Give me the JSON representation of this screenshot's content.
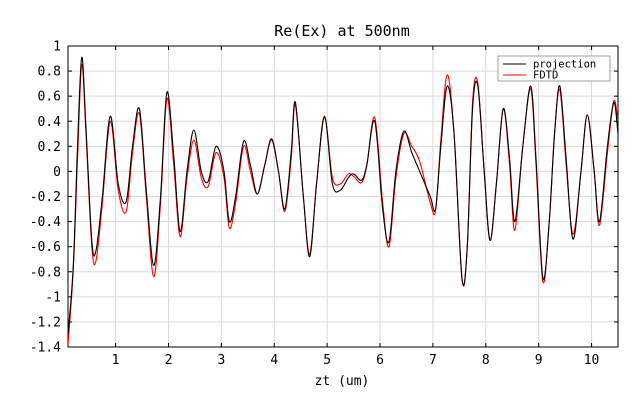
{
  "chart_data": {
    "type": "line",
    "title": "Re(Ex) at 500nm",
    "xlabel": "zt (um)",
    "ylabel": "",
    "xlim": [
      0.1,
      10.5
    ],
    "ylim": [
      -1.4,
      1.0
    ],
    "xticks": [
      1,
      2,
      3,
      4,
      5,
      6,
      7,
      8,
      9,
      10
    ],
    "xtick_labels": [
      "1",
      "2",
      "3",
      "4",
      "5",
      "6",
      "7",
      "8",
      "9",
      "10"
    ],
    "yticks": [
      -1.4,
      -1.2,
      -1,
      -0.8,
      -0.6,
      -0.4,
      -0.2,
      0,
      0.2,
      0.4,
      0.6,
      0.8,
      1
    ],
    "ytick_labels": [
      "-1.4",
      "-1.2",
      "-1",
      "-0.8",
      "-0.6",
      "-0.4",
      "-0.2",
      "0",
      "0.2",
      "0.4",
      "0.6",
      "0.8",
      "1"
    ],
    "grid": true,
    "legend_position": "top-right",
    "colors": {
      "projection": "#000000",
      "FDTD": "#ff0000"
    },
    "series": [
      {
        "name": "projection",
        "color": "#000000",
        "points": [
          [
            0.1,
            -1.3
          ],
          [
            0.2,
            -0.75
          ],
          [
            0.28,
            0.2
          ],
          [
            0.36,
            0.91
          ],
          [
            0.44,
            0.35
          ],
          [
            0.55,
            -0.55
          ],
          [
            0.63,
            -0.63
          ],
          [
            0.75,
            -0.2
          ],
          [
            0.9,
            0.44
          ],
          [
            1.05,
            -0.1
          ],
          [
            1.2,
            -0.24
          ],
          [
            1.32,
            0.2
          ],
          [
            1.45,
            0.5
          ],
          [
            1.58,
            -0.15
          ],
          [
            1.72,
            -0.75
          ],
          [
            1.85,
            -0.2
          ],
          [
            1.97,
            0.63
          ],
          [
            2.1,
            0.12
          ],
          [
            2.22,
            -0.48
          ],
          [
            2.35,
            0.0
          ],
          [
            2.48,
            0.33
          ],
          [
            2.62,
            0.0
          ],
          [
            2.75,
            -0.08
          ],
          [
            2.9,
            0.2
          ],
          [
            3.05,
            0.0
          ],
          [
            3.15,
            -0.4
          ],
          [
            3.27,
            -0.2
          ],
          [
            3.42,
            0.24
          ],
          [
            3.55,
            0.05
          ],
          [
            3.68,
            -0.18
          ],
          [
            3.82,
            0.05
          ],
          [
            3.95,
            0.26
          ],
          [
            4.08,
            0.0
          ],
          [
            4.2,
            -0.3
          ],
          [
            4.32,
            0.15
          ],
          [
            4.4,
            0.55
          ],
          [
            4.55,
            -0.2
          ],
          [
            4.67,
            -0.68
          ],
          [
            4.8,
            -0.1
          ],
          [
            4.95,
            0.44
          ],
          [
            5.1,
            -0.1
          ],
          [
            5.25,
            -0.15
          ],
          [
            5.4,
            -0.05
          ],
          [
            5.5,
            -0.02
          ],
          [
            5.65,
            -0.07
          ],
          [
            5.75,
            0.05
          ],
          [
            5.9,
            0.4
          ],
          [
            6.05,
            -0.3
          ],
          [
            6.17,
            -0.56
          ],
          [
            6.3,
            0.0
          ],
          [
            6.45,
            0.32
          ],
          [
            6.6,
            0.15
          ],
          [
            6.75,
            0.0
          ],
          [
            6.95,
            -0.2
          ],
          [
            7.05,
            -0.3
          ],
          [
            7.15,
            0.2
          ],
          [
            7.27,
            0.68
          ],
          [
            7.4,
            0.3
          ],
          [
            7.55,
            -0.85
          ],
          [
            7.65,
            -0.6
          ],
          [
            7.75,
            0.5
          ],
          [
            7.85,
            0.68
          ],
          [
            7.97,
            0.0
          ],
          [
            8.08,
            -0.55
          ],
          [
            8.2,
            -0.1
          ],
          [
            8.33,
            0.5
          ],
          [
            8.45,
            0.1
          ],
          [
            8.55,
            -0.4
          ],
          [
            8.7,
            0.2
          ],
          [
            8.85,
            0.68
          ],
          [
            8.95,
            0.1
          ],
          [
            9.08,
            -0.85
          ],
          [
            9.2,
            -0.4
          ],
          [
            9.3,
            0.3
          ],
          [
            9.4,
            0.68
          ],
          [
            9.52,
            0.1
          ],
          [
            9.65,
            -0.54
          ],
          [
            9.8,
            0.0
          ],
          [
            9.92,
            0.45
          ],
          [
            10.05,
            0.0
          ],
          [
            10.15,
            -0.4
          ],
          [
            10.3,
            0.2
          ],
          [
            10.42,
            0.55
          ],
          [
            10.5,
            0.3
          ]
        ]
      },
      {
        "name": "FDTD",
        "color": "#ff0000",
        "points": [
          [
            0.1,
            -1.38
          ],
          [
            0.2,
            -0.78
          ],
          [
            0.28,
            0.1
          ],
          [
            0.36,
            0.85
          ],
          [
            0.44,
            0.3
          ],
          [
            0.55,
            -0.6
          ],
          [
            0.63,
            -0.71
          ],
          [
            0.75,
            -0.25
          ],
          [
            0.9,
            0.4
          ],
          [
            1.05,
            -0.15
          ],
          [
            1.2,
            -0.32
          ],
          [
            1.32,
            0.15
          ],
          [
            1.45,
            0.46
          ],
          [
            1.58,
            -0.2
          ],
          [
            1.72,
            -0.84
          ],
          [
            1.85,
            -0.25
          ],
          [
            1.97,
            0.58
          ],
          [
            2.1,
            0.05
          ],
          [
            2.22,
            -0.52
          ],
          [
            2.35,
            -0.05
          ],
          [
            2.48,
            0.25
          ],
          [
            2.62,
            -0.05
          ],
          [
            2.75,
            -0.12
          ],
          [
            2.9,
            0.15
          ],
          [
            3.05,
            -0.05
          ],
          [
            3.15,
            -0.45
          ],
          [
            3.27,
            -0.25
          ],
          [
            3.42,
            0.2
          ],
          [
            3.55,
            0.0
          ],
          [
            3.68,
            -0.18
          ],
          [
            3.82,
            0.05
          ],
          [
            3.95,
            0.25
          ],
          [
            4.08,
            0.0
          ],
          [
            4.2,
            -0.32
          ],
          [
            4.32,
            0.1
          ],
          [
            4.4,
            0.53
          ],
          [
            4.55,
            -0.2
          ],
          [
            4.67,
            -0.66
          ],
          [
            4.8,
            -0.1
          ],
          [
            4.95,
            0.43
          ],
          [
            5.1,
            -0.05
          ],
          [
            5.25,
            -0.1
          ],
          [
            5.4,
            -0.02
          ],
          [
            5.5,
            -0.04
          ],
          [
            5.65,
            -0.09
          ],
          [
            5.75,
            0.05
          ],
          [
            5.9,
            0.43
          ],
          [
            6.05,
            -0.25
          ],
          [
            6.17,
            -0.6
          ],
          [
            6.3,
            -0.05
          ],
          [
            6.45,
            0.3
          ],
          [
            6.6,
            0.2
          ],
          [
            6.75,
            0.08
          ],
          [
            6.95,
            -0.25
          ],
          [
            7.05,
            -0.31
          ],
          [
            7.15,
            0.25
          ],
          [
            7.27,
            0.77
          ],
          [
            7.4,
            0.3
          ],
          [
            7.55,
            -0.86
          ],
          [
            7.65,
            -0.6
          ],
          [
            7.75,
            0.55
          ],
          [
            7.85,
            0.7
          ],
          [
            7.97,
            0.0
          ],
          [
            8.08,
            -0.55
          ],
          [
            8.2,
            -0.1
          ],
          [
            8.33,
            0.5
          ],
          [
            8.45,
            0.05
          ],
          [
            8.55,
            -0.47
          ],
          [
            8.7,
            0.2
          ],
          [
            8.85,
            0.66
          ],
          [
            8.95,
            0.05
          ],
          [
            9.08,
            -0.88
          ],
          [
            9.2,
            -0.4
          ],
          [
            9.3,
            0.3
          ],
          [
            9.4,
            0.65
          ],
          [
            9.52,
            0.05
          ],
          [
            9.65,
            -0.5
          ],
          [
            9.8,
            0.0
          ],
          [
            9.92,
            0.45
          ],
          [
            10.05,
            0.0
          ],
          [
            10.15,
            -0.43
          ],
          [
            10.3,
            0.15
          ],
          [
            10.42,
            0.56
          ],
          [
            10.5,
            0.4
          ]
        ]
      }
    ]
  }
}
